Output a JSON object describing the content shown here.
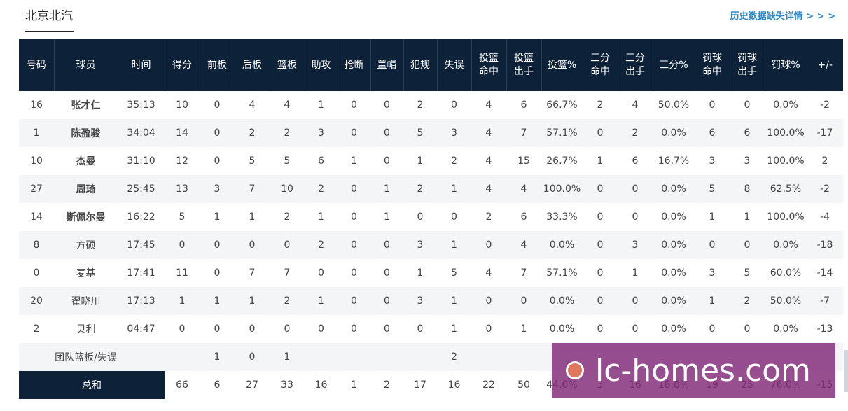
{
  "team_tab": "北京北汽",
  "history_link": "历史数据缺失详情 > > >",
  "headers": [
    "号码",
    "球员",
    "时间",
    "得分",
    "前板",
    "后板",
    "篮板",
    "助攻",
    "抢断",
    "盖帽",
    "犯规",
    "失误",
    "投篮\n命中",
    "投篮\n出手",
    "投篮%",
    "三分\n命中",
    "三分\n出手",
    "三分%",
    "罚球\n命中",
    "罚球\n出手",
    "罚球%",
    "+/-"
  ],
  "players": [
    {
      "num": "16",
      "name": "张才仁",
      "starter": true,
      "time": "35:13",
      "pts": "10",
      "oreb": "0",
      "dreb": "4",
      "reb": "4",
      "ast": "1",
      "stl": "0",
      "blk": "0",
      "pf": "2",
      "to": "0",
      "fgm": "4",
      "fga": "6",
      "fgp": "66.7%",
      "tpm": "2",
      "tpa": "4",
      "tpp": "50.0%",
      "ftm": "0",
      "fta": "0",
      "ftp": "0.0%",
      "pm": "-2"
    },
    {
      "num": "1",
      "name": "陈盈骏",
      "starter": true,
      "time": "34:04",
      "pts": "14",
      "oreb": "0",
      "dreb": "2",
      "reb": "2",
      "ast": "3",
      "stl": "0",
      "blk": "0",
      "pf": "5",
      "to": "3",
      "fgm": "4",
      "fga": "7",
      "fgp": "57.1%",
      "tpm": "0",
      "tpa": "2",
      "tpp": "0.0%",
      "ftm": "6",
      "fta": "6",
      "ftp": "100.0%",
      "pm": "-17"
    },
    {
      "num": "10",
      "name": "杰曼",
      "starter": true,
      "time": "31:10",
      "pts": "12",
      "oreb": "0",
      "dreb": "5",
      "reb": "5",
      "ast": "6",
      "stl": "1",
      "blk": "0",
      "pf": "1",
      "to": "2",
      "fgm": "4",
      "fga": "15",
      "fgp": "26.7%",
      "tpm": "1",
      "tpa": "6",
      "tpp": "16.7%",
      "ftm": "3",
      "fta": "3",
      "ftp": "100.0%",
      "pm": "2"
    },
    {
      "num": "27",
      "name": "周琦",
      "starter": true,
      "time": "25:45",
      "pts": "13",
      "oreb": "3",
      "dreb": "7",
      "reb": "10",
      "ast": "2",
      "stl": "0",
      "blk": "1",
      "pf": "2",
      "to": "1",
      "fgm": "4",
      "fga": "4",
      "fgp": "100.0%",
      "tpm": "0",
      "tpa": "0",
      "tpp": "0.0%",
      "ftm": "5",
      "fta": "8",
      "ftp": "62.5%",
      "pm": "-2"
    },
    {
      "num": "14",
      "name": "斯佩尔曼",
      "starter": true,
      "time": "16:22",
      "pts": "5",
      "oreb": "1",
      "dreb": "1",
      "reb": "2",
      "ast": "1",
      "stl": "0",
      "blk": "1",
      "pf": "0",
      "to": "0",
      "fgm": "2",
      "fga": "6",
      "fgp": "33.3%",
      "tpm": "0",
      "tpa": "0",
      "tpp": "0.0%",
      "ftm": "1",
      "fta": "1",
      "ftp": "100.0%",
      "pm": "-4"
    },
    {
      "num": "8",
      "name": "方硕",
      "starter": false,
      "time": "17:45",
      "pts": "0",
      "oreb": "0",
      "dreb": "0",
      "reb": "0",
      "ast": "2",
      "stl": "0",
      "blk": "0",
      "pf": "3",
      "to": "1",
      "fgm": "0",
      "fga": "4",
      "fgp": "0.0%",
      "tpm": "0",
      "tpa": "3",
      "tpp": "0.0%",
      "ftm": "0",
      "fta": "0",
      "ftp": "0.0%",
      "pm": "-18"
    },
    {
      "num": "0",
      "name": "麦基",
      "starter": false,
      "time": "17:41",
      "pts": "11",
      "oreb": "0",
      "dreb": "7",
      "reb": "7",
      "ast": "0",
      "stl": "0",
      "blk": "0",
      "pf": "1",
      "to": "5",
      "fgm": "4",
      "fga": "7",
      "fgp": "57.1%",
      "tpm": "0",
      "tpa": "1",
      "tpp": "0.0%",
      "ftm": "3",
      "fta": "5",
      "ftp": "60.0%",
      "pm": "-14"
    },
    {
      "num": "20",
      "name": "翟晓川",
      "starter": false,
      "time": "17:13",
      "pts": "1",
      "oreb": "1",
      "dreb": "1",
      "reb": "2",
      "ast": "1",
      "stl": "0",
      "blk": "0",
      "pf": "3",
      "to": "1",
      "fgm": "0",
      "fga": "0",
      "fgp": "0.0%",
      "tpm": "0",
      "tpa": "0",
      "tpp": "0.0%",
      "ftm": "1",
      "fta": "2",
      "ftp": "50.0%",
      "pm": "-7"
    },
    {
      "num": "2",
      "name": "贝利",
      "starter": false,
      "time": "04:47",
      "pts": "0",
      "oreb": "0",
      "dreb": "0",
      "reb": "0",
      "ast": "0",
      "stl": "0",
      "blk": "0",
      "pf": "0",
      "to": "1",
      "fgm": "0",
      "fga": "1",
      "fgp": "0.0%",
      "tpm": "0",
      "tpa": "0",
      "tpp": "0.0%",
      "ftm": "0",
      "fta": "0",
      "ftp": "0.0%",
      "pm": "-13"
    }
  ],
  "team_row": {
    "label": "团队篮板/失误",
    "oreb": "1",
    "dreb": "0",
    "reb": "1",
    "to": "2"
  },
  "total_row": {
    "label": "总和",
    "pts": "66",
    "oreb": "6",
    "dreb": "27",
    "reb": "33",
    "ast": "16",
    "stl": "1",
    "blk": "2",
    "pf": "17",
    "to": "16",
    "fgm": "22",
    "fga": "50",
    "fgp": "44.0%",
    "tpm": "3",
    "tpa": "16",
    "tpp": "18.8%",
    "ftm": "19",
    "fta": "25",
    "ftp": "76.0%",
    "pm": "-15"
  },
  "watermark": "lc-homes.com"
}
